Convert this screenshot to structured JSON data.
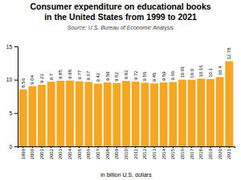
{
  "chart_data": {
    "type": "bar",
    "title": "Consumer expenditure on educational books",
    "subtitle": "in the United States from 1999 to 2021",
    "annotations": [
      "Source: U.S. Bureau of Economic Analysis"
    ],
    "xlabel": "in billion U.S. dollars",
    "categories": [
      "1999",
      "2000",
      "2001",
      "2002",
      "2003",
      "2004",
      "2005",
      "2006",
      "2007",
      "2008",
      "2009",
      "2010",
      "2011",
      "2012",
      "2013",
      "2014",
      "2015",
      "2016",
      "2017",
      "2018",
      "2019",
      "2020",
      "2021"
    ],
    "values": [
      8.56,
      9.04,
      9.23,
      9.7,
      9.85,
      9.88,
      9.77,
      9.67,
      9.42,
      9.59,
      9.52,
      9.82,
      9.72,
      9.55,
      9.45,
      9.59,
      9.66,
      10.01,
      10.0,
      10.16,
      10.1,
      10.4,
      12.78
    ],
    "value_labels": [
      "8.56",
      "9.04",
      "9.23",
      "9.7",
      "9.85",
      "9.88",
      "9.77",
      "9.67",
      "9.42",
      "9.59",
      "9.52",
      "9.82",
      "9.72",
      "9.55",
      "9.45",
      "9.59",
      "9.66",
      "10.01",
      "10.0",
      "10.16",
      "10.1",
      "10.4",
      "12.78"
    ],
    "color": "#F5A623",
    "ylim": [
      0,
      15
    ],
    "yticks": [
      0,
      5,
      10,
      15
    ],
    "grid": false,
    "data_labels": true
  }
}
